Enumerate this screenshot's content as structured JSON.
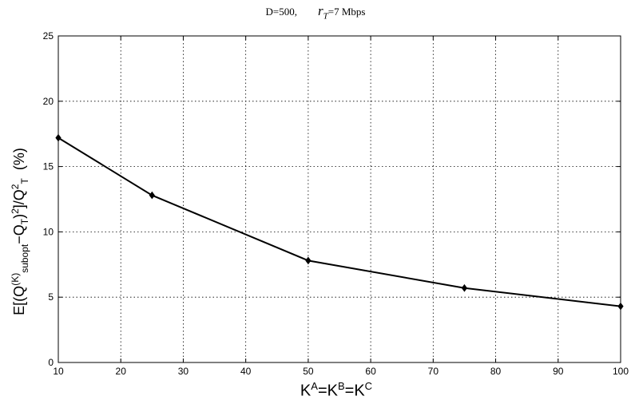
{
  "chart_data": {
    "type": "line",
    "title": {
      "prefix": "D=500,",
      "symbol": "r",
      "symbol_sub": "T",
      "suffix": "=7 Mbps"
    },
    "xlabel": {
      "base": "K",
      "parts": [
        {
          "base": "K",
          "sup": "A"
        },
        {
          "base": "K",
          "sup": "B"
        },
        {
          "base": "K",
          "sup": "C"
        }
      ]
    },
    "ylabel": "E[(Q_subopt^(K) − Q_T)^2]/Q_T^2 (%)",
    "x": [
      10,
      25,
      50,
      75,
      100
    ],
    "series": [
      {
        "values": [
          17.2,
          12.8,
          7.8,
          5.7,
          4.3
        ],
        "color": "#000000",
        "marker": "diamond"
      }
    ],
    "xlim": [
      10,
      100
    ],
    "ylim": [
      0,
      25
    ],
    "xticks": [
      10,
      20,
      30,
      40,
      50,
      60,
      70,
      80,
      90,
      100
    ],
    "yticks": [
      0,
      5,
      10,
      15,
      20,
      25
    ],
    "grid": true
  }
}
